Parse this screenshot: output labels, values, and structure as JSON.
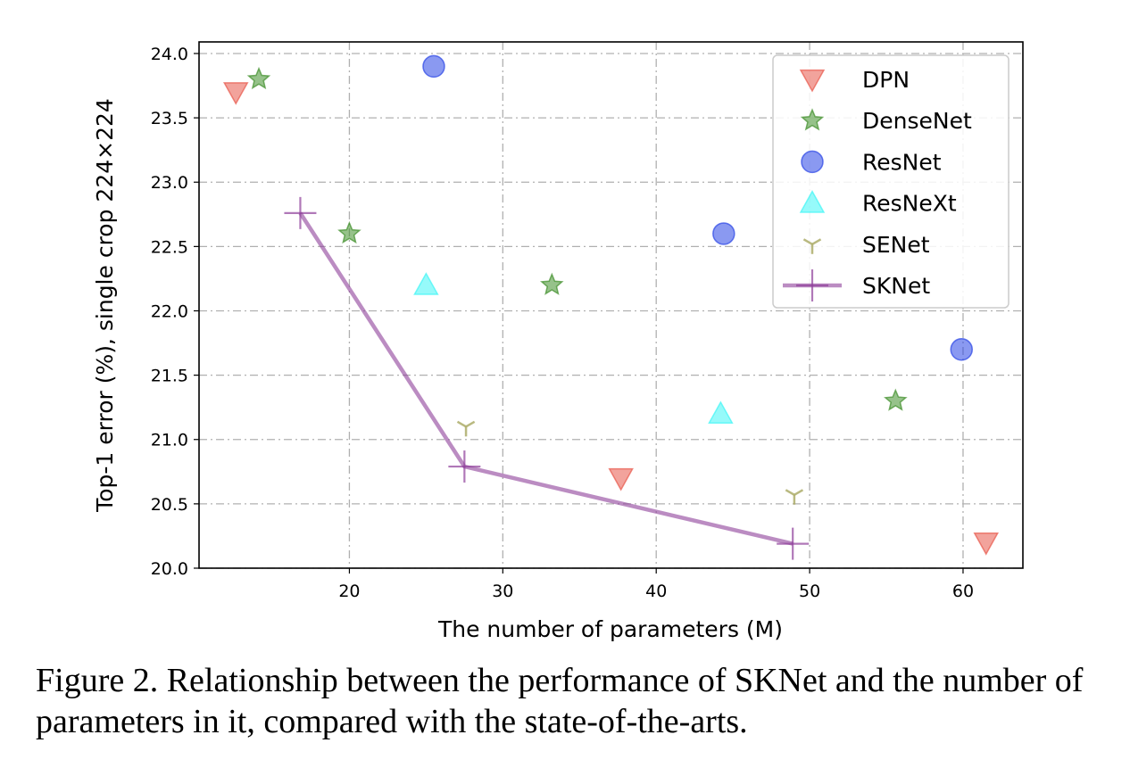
{
  "chart_data": {
    "type": "scatter",
    "xlabel": "The number of parameters (M)",
    "ylabel": "Top-1 error (%), single crop 224×224",
    "xlim": [
      10.2,
      63.9
    ],
    "ylim": [
      20.0,
      24.09
    ],
    "xticks": [
      20,
      30,
      40,
      50,
      60
    ],
    "yticks": [
      20.0,
      20.5,
      21.0,
      21.5,
      22.0,
      22.5,
      23.0,
      23.5,
      24.0
    ],
    "grid": true,
    "legend_position": "top-right",
    "series": [
      {
        "name": "DPN",
        "marker": "triangle-down",
        "color": "#e8574a",
        "x": [
          12.6,
          37.7,
          61.5
        ],
        "y": [
          23.7,
          20.7,
          20.2
        ]
      },
      {
        "name": "DenseNet",
        "marker": "star",
        "color": "#3f8f2a",
        "x": [
          14.1,
          20.0,
          33.2,
          55.6
        ],
        "y": [
          23.8,
          22.6,
          22.2,
          21.3
        ]
      },
      {
        "name": "ResNet",
        "marker": "circle",
        "color": "#2a45e6",
        "x": [
          25.5,
          44.4,
          59.9
        ],
        "y": [
          23.9,
          22.6,
          21.7
        ]
      },
      {
        "name": "ResNeXt",
        "marker": "triangle-up",
        "color": "#3ff5f5",
        "x": [
          25.0,
          44.2
        ],
        "y": [
          22.2,
          21.2
        ]
      },
      {
        "name": "SENet",
        "marker": "tri-down",
        "color": "#a8a860",
        "x": [
          27.6,
          49.0
        ],
        "y": [
          21.1,
          20.57
        ]
      },
      {
        "name": "SKNet",
        "marker": "plus-line",
        "color": "#8e3f9a",
        "x": [
          16.8,
          27.5,
          48.9
        ],
        "y": [
          22.76,
          20.79,
          20.19
        ]
      }
    ]
  },
  "caption": "Figure 2. Relationship between the performance of SKNet and the number of parameters in it, compared with the state-of-the-arts."
}
